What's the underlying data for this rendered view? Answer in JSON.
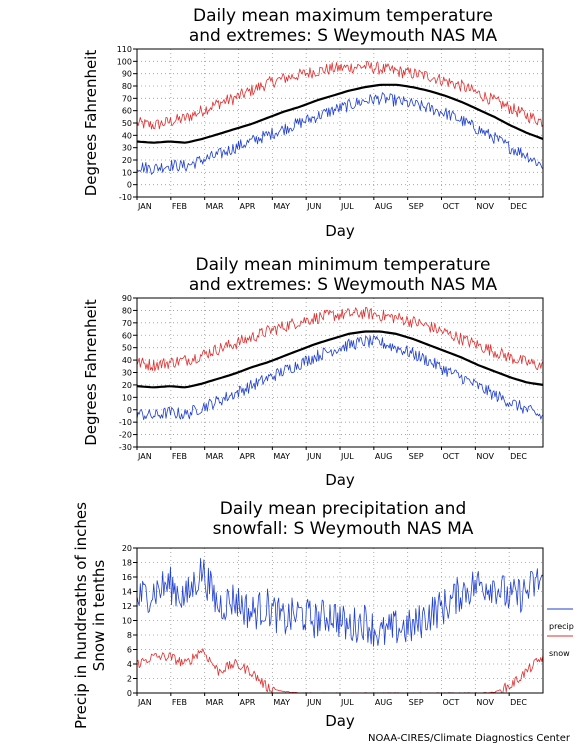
{
  "chart_data": [
    {
      "type": "line",
      "title": [
        "Daily mean maximum temperature",
        "and extremes: S Weymouth NAS MA"
      ],
      "xlabel": "Day",
      "ylabel": "Degrees Fahrenheit",
      "ylim": [
        -10,
        110
      ],
      "yticks": [
        "-10",
        "0",
        "10",
        "20",
        "30",
        "40",
        "50",
        "60",
        "70",
        "80",
        "90",
        "100",
        "110"
      ],
      "months": [
        "JAN",
        "FEB",
        "MAR",
        "APR",
        "MAY",
        "JUN",
        "JUL",
        "AUG",
        "SEP",
        "OCT",
        "NOV",
        "DEC"
      ],
      "grid": true,
      "series": [
        {
          "color": "#e03030",
          "values": [
            50,
            48,
            51,
            54,
            60,
            66,
            70,
            76,
            82,
            86,
            89,
            92,
            94,
            95,
            96,
            94,
            92,
            90,
            88,
            84,
            80,
            74,
            68,
            62,
            56,
            51
          ]
        },
        {
          "color": "#000000",
          "values": [
            35,
            34,
            35,
            34,
            37,
            41,
            45,
            49,
            54,
            59,
            63,
            68,
            72,
            76,
            79,
            81,
            81,
            79,
            76,
            72,
            67,
            61,
            55,
            48,
            42,
            37
          ]
        },
        {
          "color": "#2040d0",
          "values": [
            15,
            13,
            16,
            15,
            20,
            24,
            30,
            35,
            40,
            45,
            50,
            55,
            60,
            64,
            68,
            70,
            68,
            65,
            62,
            58,
            52,
            45,
            38,
            30,
            24,
            15
          ]
        }
      ]
    },
    {
      "type": "line",
      "title": [
        "Daily mean minimum temperature",
        "and extremes: S Weymouth NAS MA"
      ],
      "xlabel": "Day",
      "ylabel": "Degrees Fahrenheit",
      "ylim": [
        -30,
        90
      ],
      "yticks": [
        "-30",
        "-20",
        "-10",
        "0",
        "10",
        "20",
        "30",
        "40",
        "50",
        "60",
        "70",
        "80",
        "90"
      ],
      "months": [
        "JAN",
        "FEB",
        "MAR",
        "APR",
        "MAY",
        "JUN",
        "JUL",
        "AUG",
        "SEP",
        "OCT",
        "NOV",
        "DEC"
      ],
      "grid": true,
      "series": [
        {
          "color": "#e03030",
          "values": [
            38,
            36,
            38,
            40,
            44,
            49,
            53,
            58,
            63,
            67,
            71,
            74,
            76,
            77,
            78,
            76,
            74,
            71,
            67,
            62,
            57,
            52,
            47,
            42,
            38,
            35
          ]
        },
        {
          "color": "#000000",
          "values": [
            19,
            18,
            19,
            18,
            21,
            25,
            29,
            34,
            38,
            43,
            48,
            53,
            57,
            61,
            63,
            63,
            61,
            57,
            52,
            47,
            42,
            36,
            31,
            26,
            22,
            20
          ]
        },
        {
          "color": "#2040d0",
          "values": [
            -3,
            -5,
            -2,
            -4,
            2,
            7,
            13,
            19,
            25,
            31,
            37,
            43,
            48,
            52,
            55,
            54,
            50,
            45,
            39,
            32,
            26,
            19,
            12,
            6,
            0,
            -6
          ]
        }
      ]
    },
    {
      "type": "line",
      "title": [
        "Daily mean precipitation and",
        "snowfall: S Weymouth NAS MA"
      ],
      "xlabel": "Day",
      "ylabel": [
        "Precip in hundreaths of inches",
        "Snow in tenths"
      ],
      "ylim": [
        0,
        20
      ],
      "yticks": [
        "0",
        "2",
        "4",
        "6",
        "8",
        "10",
        "12",
        "14",
        "16",
        "18",
        "20"
      ],
      "months": [
        "JAN",
        "FEB",
        "MAR",
        "APR",
        "MAY",
        "JUN",
        "JUL",
        "AUG",
        "SEP",
        "OCT",
        "NOV",
        "DEC"
      ],
      "grid": true,
      "legend": {
        "placement": "right",
        "entries": [
          {
            "label": "precip",
            "color": "#2040d0"
          },
          {
            "label": "snow",
            "color": "#e03030"
          }
        ]
      },
      "series": [
        {
          "name": "precip",
          "color": "#2040d0",
          "values": [
            13,
            14,
            15,
            13,
            17,
            12,
            13,
            11,
            12,
            10,
            11,
            10,
            11,
            9,
            10,
            8,
            9,
            9,
            11,
            12,
            14,
            15,
            15,
            13,
            14,
            16
          ]
        },
        {
          "name": "snow",
          "color": "#e03030",
          "values": [
            4,
            5,
            5,
            4,
            6,
            3,
            4,
            3,
            0.8,
            0.2,
            0,
            0,
            0,
            0,
            0,
            0,
            0,
            0,
            0,
            0,
            0,
            0,
            0.1,
            1,
            3,
            5
          ]
        }
      ]
    }
  ],
  "footer": {
    "credit": "NOAA-CIRES/Climate Diagnostics Center"
  }
}
